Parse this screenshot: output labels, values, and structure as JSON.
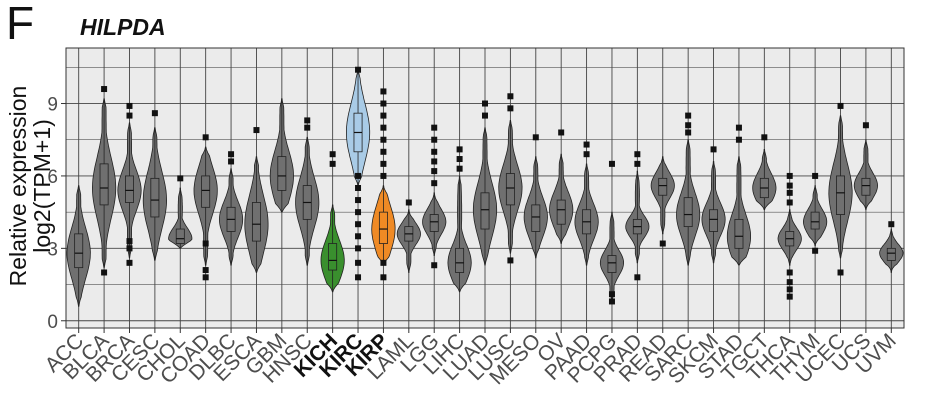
{
  "panel_label": "F",
  "chart_data": {
    "type": "violin",
    "title": "HILPDA",
    "ylabel_lines": [
      "Relative expression",
      "log2(TPM+1)"
    ],
    "xlabel": "",
    "ylim": [
      -0.3,
      11.3
    ],
    "yticks": [
      0,
      3,
      6,
      9
    ],
    "grid": true,
    "legend": "none",
    "default_color": "#707070",
    "highlight_colors": {
      "KICH": "#3a8f2e",
      "KIRC": "#a9cbe6",
      "KIRP": "#ef8a25"
    },
    "bold_categories": [
      "KICH",
      "KIRC",
      "KIRP"
    ],
    "categories": [
      "ACC",
      "BLCA",
      "BRCA",
      "CESC",
      "CHOL",
      "COAD",
      "DLBC",
      "ESCA",
      "GBM",
      "HNSC",
      "KICH",
      "KIRC",
      "KIRP",
      "LAML",
      "LGG",
      "LIHC",
      "LUAD",
      "LUSC",
      "MESO",
      "OV",
      "PAAD",
      "PCPG",
      "PRAD",
      "READ",
      "SARC",
      "SKCM",
      "STAD",
      "TGCT",
      "THCA",
      "THYM",
      "UCEC",
      "UCS",
      "UVM"
    ],
    "series": [
      {
        "cat": "ACC",
        "min": 0.6,
        "q1": 2.2,
        "median": 2.8,
        "q3": 3.6,
        "max": 5.6,
        "outliers": []
      },
      {
        "cat": "BLCA",
        "min": 2.2,
        "q1": 4.8,
        "median": 5.5,
        "q3": 6.5,
        "max": 9.2,
        "outliers": [
          2.0,
          9.6
        ]
      },
      {
        "cat": "BRCA",
        "min": 2.6,
        "q1": 4.9,
        "median": 5.4,
        "q3": 6.0,
        "max": 8.2,
        "outliers": [
          2.4,
          3.0,
          3.3,
          8.5,
          8.9
        ]
      },
      {
        "cat": "CESC",
        "min": 2.5,
        "q1": 4.3,
        "median": 5.0,
        "q3": 5.9,
        "max": 8.0,
        "outliers": [
          8.6
        ]
      },
      {
        "cat": "CHOL",
        "min": 3.0,
        "q1": 3.2,
        "median": 3.4,
        "q3": 3.8,
        "max": 5.5,
        "outliers": [
          5.9
        ]
      },
      {
        "cat": "COAD",
        "min": 2.3,
        "q1": 4.7,
        "median": 5.4,
        "q3": 6.0,
        "max": 7.2,
        "outliers": [
          1.8,
          2.1,
          3.2,
          7.6
        ]
      },
      {
        "cat": "DLBC",
        "min": 2.3,
        "q1": 3.7,
        "median": 4.2,
        "q3": 4.7,
        "max": 6.3,
        "outliers": [
          6.6,
          6.9
        ]
      },
      {
        "cat": "ESCA",
        "min": 2.0,
        "q1": 3.3,
        "median": 4.0,
        "q3": 4.9,
        "max": 6.8,
        "outliers": [
          7.9
        ]
      },
      {
        "cat": "GBM",
        "min": 4.5,
        "q1": 5.4,
        "median": 6.0,
        "q3": 6.8,
        "max": 9.2,
        "outliers": []
      },
      {
        "cat": "HNSC",
        "min": 2.3,
        "q1": 4.2,
        "median": 4.9,
        "q3": 5.6,
        "max": 7.6,
        "outliers": [
          8.0,
          8.3
        ]
      },
      {
        "cat": "KICH",
        "min": 1.2,
        "q1": 2.1,
        "median": 2.5,
        "q3": 3.2,
        "max": 4.8,
        "outliers": [
          6.5,
          6.9
        ]
      },
      {
        "cat": "KIRC",
        "min": 5.6,
        "q1": 7.0,
        "median": 7.8,
        "q3": 8.6,
        "max": 10.4,
        "outliers": [
          1.8,
          2.4,
          3.0,
          3.5,
          4.0,
          4.5,
          5.0,
          5.5,
          6.0,
          10.4
        ]
      },
      {
        "cat": "KIRP",
        "min": 2.3,
        "q1": 3.2,
        "median": 3.8,
        "q3": 4.5,
        "max": 5.6,
        "outliers": [
          1.8,
          2.4,
          6.0,
          6.5,
          7.0,
          7.5,
          8.0,
          8.5,
          9.0,
          9.5
        ]
      },
      {
        "cat": "LAML",
        "min": 2.0,
        "q1": 3.3,
        "median": 3.6,
        "q3": 3.9,
        "max": 4.6,
        "outliers": [
          4.9
        ]
      },
      {
        "cat": "LGG",
        "min": 2.7,
        "q1": 3.7,
        "median": 4.1,
        "q3": 4.4,
        "max": 5.3,
        "outliers": [
          2.3,
          5.7,
          6.2,
          6.6,
          7.0,
          7.5,
          8.0
        ]
      },
      {
        "cat": "LIHC",
        "min": 1.2,
        "q1": 2.0,
        "median": 2.4,
        "q3": 3.0,
        "max": 6.0,
        "outliers": [
          6.3,
          6.7,
          7.1
        ]
      },
      {
        "cat": "LUAD",
        "min": 2.3,
        "q1": 3.8,
        "median": 4.6,
        "q3": 5.3,
        "max": 8.0,
        "outliers": [
          8.5,
          9.0
        ]
      },
      {
        "cat": "LUSC",
        "min": 2.8,
        "q1": 4.8,
        "median": 5.5,
        "q3": 6.1,
        "max": 8.3,
        "outliers": [
          2.5,
          8.8,
          9.3
        ]
      },
      {
        "cat": "MESO",
        "min": 2.6,
        "q1": 3.7,
        "median": 4.3,
        "q3": 4.8,
        "max": 6.8,
        "outliers": [
          7.6
        ]
      },
      {
        "cat": "OV",
        "min": 3.2,
        "q1": 4.0,
        "median": 4.6,
        "q3": 5.0,
        "max": 6.9,
        "outliers": [
          7.8
        ]
      },
      {
        "cat": "PAAD",
        "min": 2.3,
        "q1": 3.6,
        "median": 4.1,
        "q3": 4.6,
        "max": 6.5,
        "outliers": [
          6.9,
          7.3
        ]
      },
      {
        "cat": "PCPG",
        "min": 0.8,
        "q1": 2.0,
        "median": 2.4,
        "q3": 2.7,
        "max": 4.5,
        "outliers": [
          0.8,
          1.1,
          6.5
        ]
      },
      {
        "cat": "PRAD",
        "min": 2.4,
        "q1": 3.6,
        "median": 3.9,
        "q3": 4.2,
        "max": 6.2,
        "outliers": [
          1.8,
          6.5,
          6.9
        ]
      },
      {
        "cat": "READ",
        "min": 3.6,
        "q1": 5.2,
        "median": 5.6,
        "q3": 5.9,
        "max": 6.8,
        "outliers": [
          3.2
        ]
      },
      {
        "cat": "SARC",
        "min": 2.3,
        "q1": 3.9,
        "median": 4.4,
        "q3": 5.1,
        "max": 7.5,
        "outliers": [
          7.8,
          8.1,
          8.5
        ]
      },
      {
        "cat": "SKCM",
        "min": 2.4,
        "q1": 3.7,
        "median": 4.2,
        "q3": 4.6,
        "max": 6.6,
        "outliers": [
          7.1
        ]
      },
      {
        "cat": "STAD",
        "min": 2.3,
        "q1": 3.0,
        "median": 3.5,
        "q3": 4.2,
        "max": 6.8,
        "outliers": [
          7.5,
          8.0
        ]
      },
      {
        "cat": "TGCT",
        "min": 4.6,
        "q1": 5.1,
        "median": 5.5,
        "q3": 5.9,
        "max": 7.1,
        "outliers": [
          7.6
        ]
      },
      {
        "cat": "THCA",
        "min": 2.3,
        "q1": 3.1,
        "median": 3.4,
        "q3": 3.7,
        "max": 4.6,
        "outliers": [
          1.0,
          1.3,
          1.6,
          2.0,
          4.9,
          5.3,
          5.6,
          6.0
        ]
      },
      {
        "cat": "THYM",
        "min": 3.1,
        "q1": 3.8,
        "median": 4.1,
        "q3": 4.5,
        "max": 5.6,
        "outliers": [
          2.9,
          6.0
        ]
      },
      {
        "cat": "UCEC",
        "min": 2.6,
        "q1": 4.4,
        "median": 5.3,
        "q3": 6.0,
        "max": 8.5,
        "outliers": [
          2.0,
          8.9
        ]
      },
      {
        "cat": "UCS",
        "min": 4.6,
        "q1": 5.2,
        "median": 5.6,
        "q3": 5.9,
        "max": 7.5,
        "outliers": [
          8.1
        ]
      },
      {
        "cat": "UVM",
        "min": 2.0,
        "q1": 2.5,
        "median": 2.8,
        "q3": 3.0,
        "max": 3.8,
        "outliers": [
          4.0
        ]
      }
    ]
  }
}
